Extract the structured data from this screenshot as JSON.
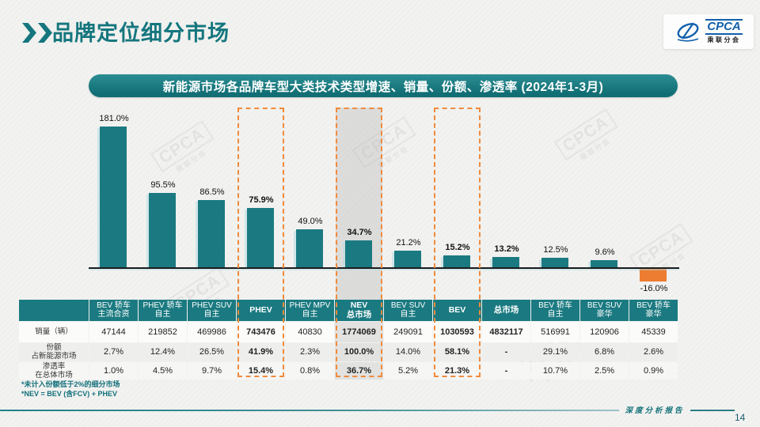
{
  "page": {
    "title": "品牌定位细分市场",
    "page_number": "14",
    "footer_label": "深度分析报告"
  },
  "logo": {
    "brand": "CPCA",
    "subtitle": "乘联分会"
  },
  "banner": {
    "title": "新能源市场各品牌车型大类技术类型增速、销量、份额、渗透率 (2024年1-3月)"
  },
  "footnotes": [
    "*未计入份额低于2%的细分市场",
    "*NEV = BEV (含FCV) + PHEV"
  ],
  "colors": {
    "teal": "#1b7a81",
    "orange": "#ed7d31",
    "dash_orange": "#f08a3c",
    "title_teal": "#15767e"
  },
  "chart_data": {
    "type": "bar",
    "title": "新能源市场各品牌车型大类技术类型增速、销量、份额、渗透率 (2024年1-3月)",
    "unit": "%",
    "categories": [
      "BEV 轿车主流合资",
      "PHEV 轿车自主",
      "PHEV SUV 自主",
      "PHEV",
      "PHEV MPV 自主",
      "NEV 总市场",
      "BEV SUV 自主",
      "BEV",
      "总市场",
      "BEV 轿车自主",
      "BEV SUV 豪华",
      "BEV 轿车豪华"
    ],
    "values": [
      181.0,
      95.5,
      86.5,
      75.9,
      49.0,
      34.7,
      21.2,
      15.2,
      13.2,
      12.5,
      9.6,
      -16.0
    ],
    "labels": [
      "181.0%",
      "95.5%",
      "86.5%",
      "75.9%",
      "49.0%",
      "34.7%",
      "21.2%",
      "15.2%",
      "13.2%",
      "12.5%",
      "9.6%",
      "-16.0%"
    ],
    "bar_color": "#1b7a81",
    "negative_bar_color": "#ed7d31",
    "highlighted_columns": [
      "PHEV",
      "NEV 总市场",
      "BEV"
    ],
    "shaded_column": "NEV 总市场",
    "ylim": [
      -20,
      190
    ],
    "grid": false,
    "value_labels_position": "above-bars"
  },
  "table": {
    "row_headers": [
      [
        "销量（辆）"
      ],
      [
        "份额",
        "占新能源市场"
      ],
      [
        "渗透率",
        "在总体市场"
      ]
    ],
    "columns": [
      {
        "lines": [
          "BEV 轿车",
          "主流合资"
        ],
        "emphasis": false,
        "boxed": false,
        "shaded": false
      },
      {
        "lines": [
          "PHEV 轿车",
          "自主"
        ],
        "emphasis": false,
        "boxed": false,
        "shaded": false
      },
      {
        "lines": [
          "PHEV SUV",
          "自主"
        ],
        "emphasis": false,
        "boxed": false,
        "shaded": false
      },
      {
        "lines": [
          "PHEV"
        ],
        "emphasis": true,
        "boxed": true,
        "shaded": false
      },
      {
        "lines": [
          "PHEV MPV",
          "自主"
        ],
        "emphasis": false,
        "boxed": false,
        "shaded": false
      },
      {
        "lines": [
          "NEV",
          "总市场"
        ],
        "emphasis": true,
        "boxed": true,
        "shaded": true
      },
      {
        "lines": [
          "BEV SUV",
          "自主"
        ],
        "emphasis": false,
        "boxed": false,
        "shaded": false
      },
      {
        "lines": [
          "BEV"
        ],
        "emphasis": true,
        "boxed": true,
        "shaded": false
      },
      {
        "lines": [
          "总市场"
        ],
        "emphasis": true,
        "boxed": false,
        "shaded": false
      },
      {
        "lines": [
          "BEV 轿车",
          "自主"
        ],
        "emphasis": false,
        "boxed": false,
        "shaded": false
      },
      {
        "lines": [
          "BEV SUV",
          "豪华"
        ],
        "emphasis": false,
        "boxed": false,
        "shaded": false
      },
      {
        "lines": [
          "BEV 轿车",
          "豪华"
        ],
        "emphasis": false,
        "boxed": false,
        "shaded": false
      }
    ],
    "rows": [
      {
        "name": "sales",
        "values": [
          "47144",
          "219852",
          "469986",
          "743476",
          "40830",
          "1774069",
          "249091",
          "1030593",
          "4832117",
          "516991",
          "120906",
          "45339"
        ]
      },
      {
        "name": "share",
        "values": [
          "2.7%",
          "12.4%",
          "26.5%",
          "41.9%",
          "2.3%",
          "100.0%",
          "14.0%",
          "58.1%",
          "-",
          "29.1%",
          "6.8%",
          "2.6%"
        ]
      },
      {
        "name": "penetration",
        "values": [
          "1.0%",
          "4.5%",
          "9.7%",
          "15.4%",
          "0.8%",
          "36.7%",
          "5.2%",
          "21.3%",
          "-",
          "10.7%",
          "2.5%",
          "0.9%"
        ]
      }
    ]
  }
}
